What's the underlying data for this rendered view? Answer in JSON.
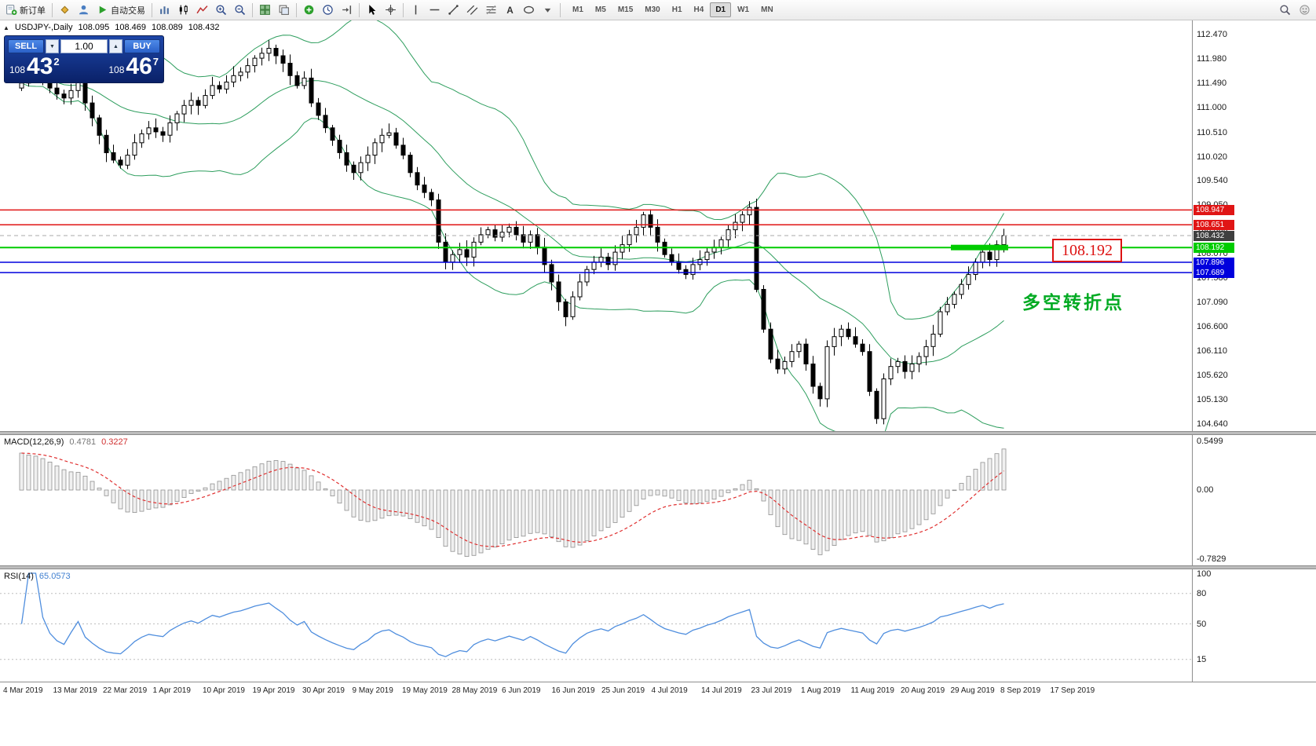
{
  "toolbar": {
    "new_order_label": "新订单",
    "autotrade_label": "自动交易",
    "timeframes": [
      "M1",
      "M5",
      "M15",
      "M30",
      "H1",
      "H4",
      "D1",
      "W1",
      "MN"
    ],
    "active_timeframe": "D1",
    "icon_names": [
      "new-order",
      "brand-diamond",
      "profile",
      "autotrading-play",
      "bar-chart",
      "candlestick-chart",
      "line-chart",
      "zoom-in",
      "zoom-out",
      "tile-windows",
      "cascade-windows",
      "indicators-add",
      "clock",
      "chart-shift",
      "cursor",
      "crosshair",
      "vertical-line",
      "horizontal-line",
      "trendline",
      "equidistant-channel",
      "fibonacci",
      "text-tool",
      "shapes",
      "arrows-dropdown",
      "search",
      "community"
    ]
  },
  "window": {
    "symbol_title": "USDJPY-,Daily",
    "open": "108.095",
    "high": "108.469",
    "low": "108.089",
    "close": "108.432"
  },
  "trade_panel": {
    "sell_label": "SELL",
    "buy_label": "BUY",
    "volume": "1.00",
    "sell_prefix": "108",
    "sell_big": "43",
    "sell_sup": "2",
    "buy_prefix": "108",
    "buy_big": "46",
    "buy_sup": "7"
  },
  "annotation": {
    "text": "多空转折点",
    "color": "#00aa22"
  },
  "callout": {
    "text": "108.192"
  },
  "colors": {
    "resistance_line": "#e01515",
    "support_line": "#0000dd",
    "pivot_line": "#00cc00",
    "current_price_tag": "#3f3f3f",
    "bollinger": "#2e9e5e",
    "macd_signal": "#e03030",
    "rsi_line": "#4f8ede",
    "panel_blue": "#0a2168"
  },
  "chart_data": {
    "type": "candlestick",
    "symbol": "USDJPY-",
    "timeframe": "Daily",
    "first_open": 111.4,
    "closes": [
      111.5,
      111.62,
      111.72,
      111.55,
      111.4,
      111.28,
      111.2,
      111.35,
      111.55,
      111.1,
      110.8,
      110.45,
      110.1,
      109.95,
      109.85,
      110.05,
      110.3,
      110.48,
      110.6,
      110.52,
      110.45,
      110.7,
      110.88,
      111.05,
      111.15,
      111.05,
      111.25,
      111.45,
      111.38,
      111.52,
      111.65,
      111.72,
      111.85,
      112.0,
      112.1,
      112.2,
      112.05,
      111.9,
      111.65,
      111.45,
      111.6,
      111.1,
      110.85,
      110.6,
      110.35,
      110.1,
      109.85,
      109.7,
      109.9,
      110.05,
      110.3,
      110.45,
      110.5,
      110.25,
      110.05,
      109.7,
      109.45,
      109.3,
      109.15,
      108.3,
      107.9,
      108.05,
      108.15,
      108.0,
      108.3,
      108.45,
      108.55,
      108.4,
      108.5,
      108.6,
      108.45,
      108.3,
      108.45,
      108.2,
      107.85,
      107.5,
      107.1,
      106.8,
      107.2,
      107.5,
      107.75,
      107.9,
      108.0,
      107.85,
      108.1,
      108.25,
      108.45,
      108.6,
      108.85,
      108.6,
      108.3,
      108.05,
      107.9,
      107.75,
      107.65,
      107.85,
      107.95,
      108.1,
      108.2,
      108.35,
      108.55,
      108.7,
      108.85,
      109.0,
      107.35,
      106.55,
      105.95,
      105.75,
      105.9,
      106.1,
      106.25,
      105.85,
      105.4,
      105.15,
      106.2,
      106.4,
      106.55,
      106.4,
      106.25,
      106.1,
      105.3,
      104.75,
      105.55,
      105.8,
      105.9,
      105.7,
      105.85,
      106.0,
      106.2,
      106.45,
      106.9,
      107.05,
      107.25,
      107.45,
      107.65,
      107.9,
      108.1,
      107.95,
      108.25,
      108.432
    ],
    "price_axis": {
      "max": 112.76,
      "min": 104.5
    },
    "y_ticks": [
      "112.470",
      "111.980",
      "111.490",
      "111.000",
      "110.510",
      "110.020",
      "109.540",
      "109.050",
      "108.560",
      "108.070",
      "107.580",
      "107.090",
      "106.600",
      "106.110",
      "105.620",
      "105.130",
      "104.640"
    ],
    "x_labels": [
      "4 Mar 2019",
      "13 Mar 2019",
      "22 Mar 2019",
      "1 Apr 2019",
      "10 Apr 2019",
      "19 Apr 2019",
      "30 Apr 2019",
      "9 May 2019",
      "19 May 2019",
      "28 May 2019",
      "6 Jun 2019",
      "16 Jun 2019",
      "25 Jun 2019",
      "4 Jul 2019",
      "14 Jul 2019",
      "23 Jul 2019",
      "1 Aug 2019",
      "11 Aug 2019",
      "20 Aug 2019",
      "29 Aug 2019",
      "8 Sep 2019",
      "17 Sep 2019"
    ],
    "levels": [
      {
        "label": "108.947",
        "value": 108.947,
        "color": "#e01515",
        "width": 1.5
      },
      {
        "label": "108.651",
        "value": 108.651,
        "color": "#e01515",
        "width": 1.5
      },
      {
        "label": "108.432",
        "value": 108.432,
        "color": "#a8a8a8",
        "style": "dashed",
        "tag_bg": "#3f3f3f"
      },
      {
        "label": "108.192",
        "value": 108.192,
        "color": "#00cc00",
        "width": 2,
        "highlight": {
          "from_bar": 132,
          "to_bar": 139
        }
      },
      {
        "label": "107.896",
        "value": 107.896,
        "color": "#0000dd",
        "width": 1.5
      },
      {
        "label": "107.689",
        "value": 107.689,
        "color": "#0000dd",
        "width": 1.5
      }
    ],
    "bollinger": {
      "period": 20,
      "deviation": 2
    },
    "macd": {
      "label": "MACD(12,26,9)",
      "value_main": "0.4781",
      "value_signal": "0.3227",
      "axis_ticks": [
        "0.5499",
        "0.00",
        "-0.7829"
      ],
      "axis_max": 0.62,
      "axis_min": -0.85
    },
    "rsi": {
      "label": "RSI(14)",
      "value": "65.0573",
      "axis_ticks": [
        "100",
        "80",
        "50",
        "15"
      ],
      "level_lines": [
        80,
        50,
        15
      ]
    }
  }
}
